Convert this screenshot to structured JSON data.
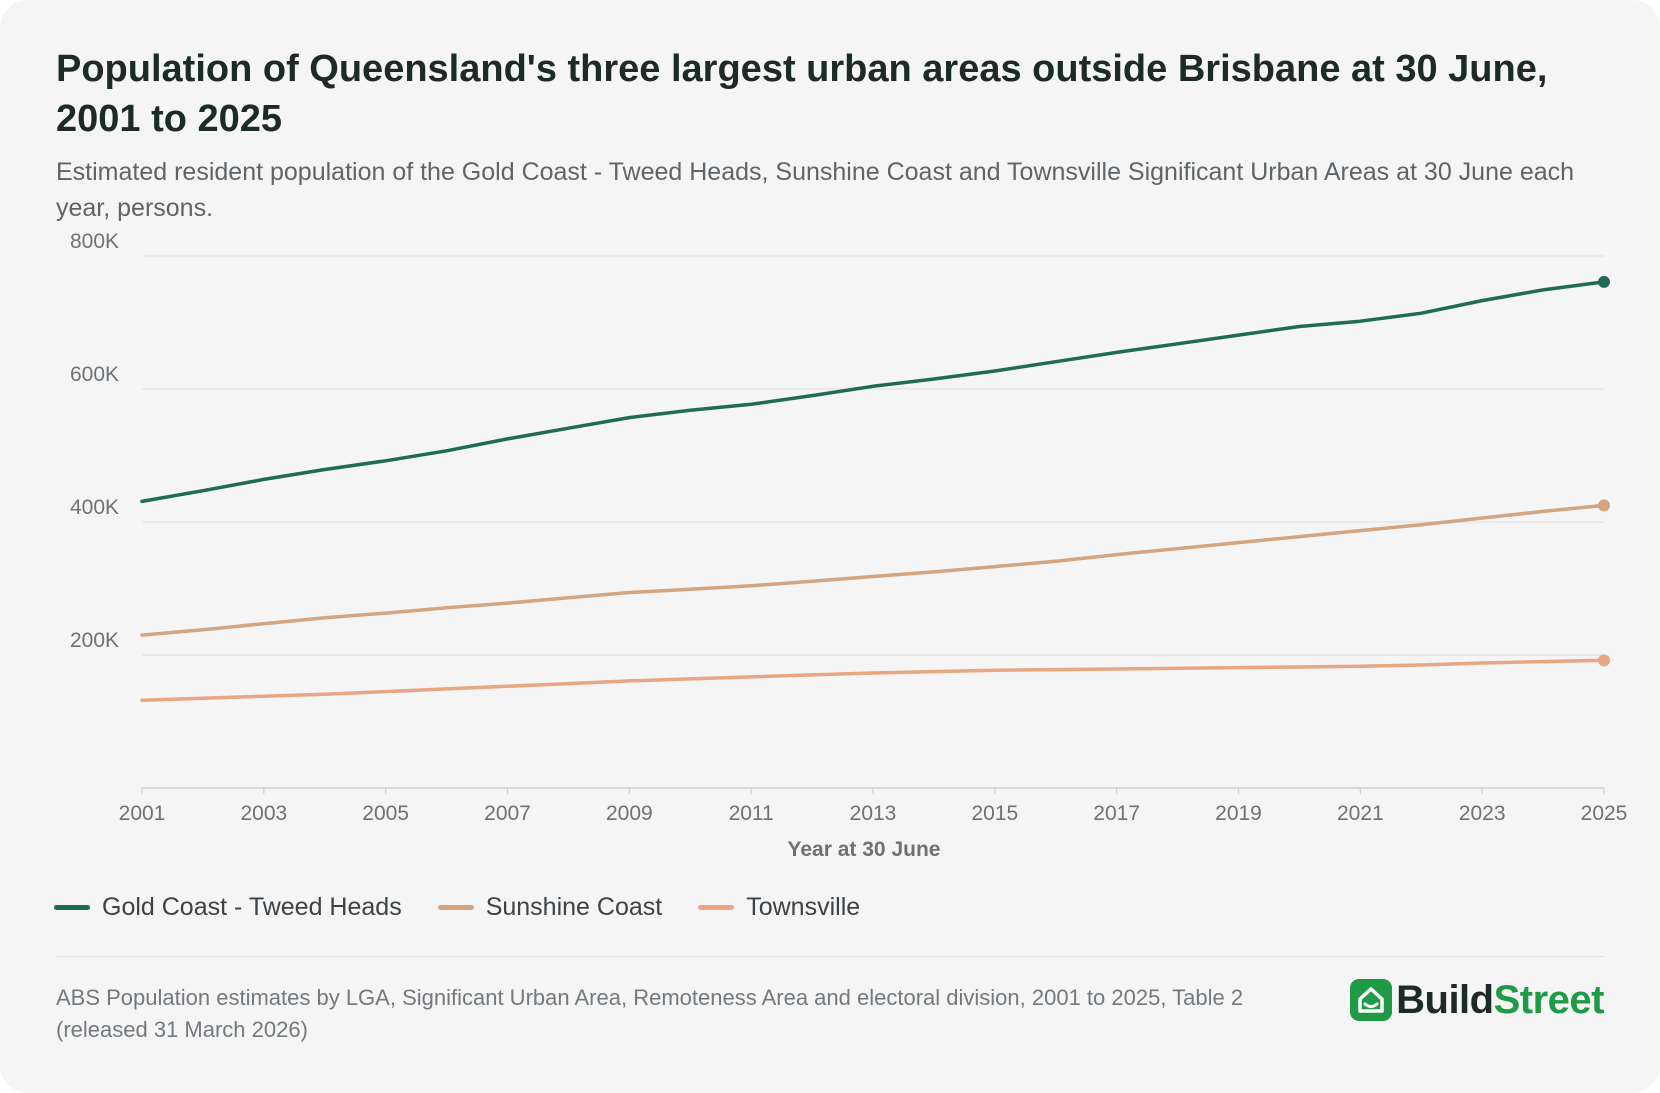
{
  "title": "Population of Queensland's three largest urban areas outside Brisbane at 30 June, 2001 to 2025",
  "subtitle": "Estimated resident population of the Gold Coast - Tweed Heads, Sunshine Coast and Townsville Significant Urban Areas at 30 June each year, persons.",
  "source": "ABS Population estimates by LGA, Significant Urban Area, Remoteness Area and electoral division, 2001 to 2025, Table 2 (released 31 March 2026)",
  "brand": {
    "part1": "Build",
    "part2": "Street",
    "icon": "house-icon"
  },
  "colors": {
    "gold_coast": "#1f6b57",
    "sunshine_coast": "#d4a57e",
    "townsville": "#e8a682",
    "grid": "#e3e3e3",
    "axis": "#d0d0d0"
  },
  "chart_data": {
    "type": "line",
    "title": "Population of Queensland's three largest urban areas outside Brisbane at 30 June, 2001 to 2025",
    "xlabel": "Year at 30 June",
    "ylabel": "",
    "xlim": [
      2001,
      2025
    ],
    "ylim": [
      0,
      800000
    ],
    "x": [
      2001,
      2002,
      2003,
      2004,
      2005,
      2006,
      2007,
      2008,
      2009,
      2010,
      2011,
      2012,
      2013,
      2014,
      2015,
      2016,
      2017,
      2018,
      2019,
      2020,
      2021,
      2022,
      2023,
      2024,
      2025
    ],
    "x_ticks": [
      2001,
      2003,
      2005,
      2007,
      2009,
      2011,
      2013,
      2015,
      2017,
      2019,
      2021,
      2023,
      2025
    ],
    "x_tick_labels": [
      "2001",
      "2003",
      "2005",
      "2007",
      "2009",
      "2011",
      "2013",
      "2015",
      "2017",
      "2019",
      "2021",
      "2023",
      "2025"
    ],
    "y_ticks": [
      200000,
      400000,
      600000,
      800000
    ],
    "y_tick_labels": [
      "200K",
      "400K",
      "600K",
      "800K"
    ],
    "grid": true,
    "legend_position": "bottom-left",
    "series": [
      {
        "name": "Gold Coast - Tweed Heads",
        "color": "#1f6b57",
        "values": [
          431000,
          447000,
          464000,
          479000,
          492000,
          507000,
          525000,
          541000,
          557000,
          568000,
          577000,
          590000,
          604000,
          615000,
          627000,
          641000,
          655000,
          668000,
          681000,
          694000,
          702000,
          714000,
          733000,
          749000,
          761000
        ]
      },
      {
        "name": "Sunshine Coast",
        "color": "#d4a57e",
        "values": [
          230000,
          238000,
          247000,
          256000,
          263000,
          271000,
          278000,
          286000,
          294000,
          299000,
          304000,
          311000,
          318000,
          325000,
          333000,
          341000,
          351000,
          360000,
          369000,
          378000,
          387000,
          396000,
          406000,
          416000,
          425000
        ]
      },
      {
        "name": "Townsville",
        "color": "#e8a682",
        "values": [
          132000,
          135000,
          138000,
          141000,
          145000,
          149000,
          153000,
          157000,
          161000,
          164000,
          167000,
          170000,
          173000,
          175000,
          177000,
          178000,
          179000,
          180000,
          181000,
          182000,
          183000,
          185000,
          188000,
          190000,
          192000
        ]
      }
    ]
  }
}
